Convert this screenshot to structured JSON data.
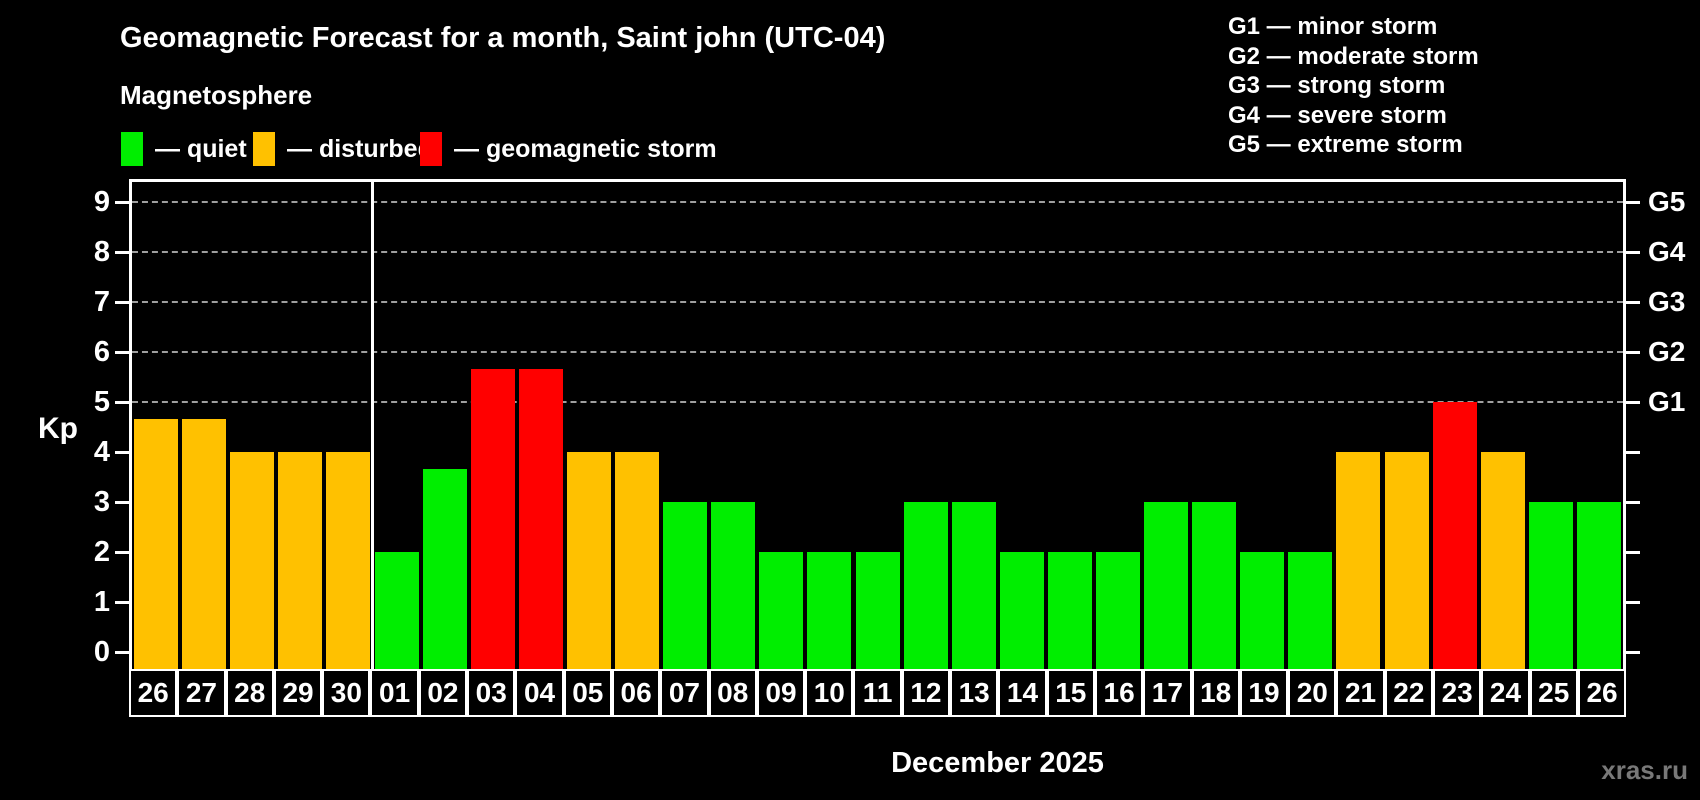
{
  "header": {
    "title": "Geomagnetic Forecast for a month, Saint john (UTC-04)",
    "subtitle": "Magnetosphere",
    "watermark": "xras.ru"
  },
  "magnetosphere_legend": {
    "items": [
      {
        "key": "quiet",
        "label": "— quiet"
      },
      {
        "key": "disturbed",
        "label": "— disturbed"
      },
      {
        "key": "storm",
        "label": "— geomagnetic storm"
      }
    ]
  },
  "storm_scale_legend": {
    "items": [
      "G1 — minor storm",
      "G2 — moderate storm",
      "G3 — strong storm",
      "G4 — severe storm",
      "G5 — extreme storm"
    ]
  },
  "chart_data": {
    "type": "bar",
    "title": "Geomagnetic Forecast for a month, Saint john (UTC-04)",
    "subtitle": "Magnetosphere",
    "xlabel": "December 2025",
    "ylabel": "Kp",
    "ylim": [
      0,
      9
    ],
    "y_ticks": [
      0,
      1,
      2,
      3,
      4,
      5,
      6,
      7,
      8,
      9
    ],
    "gridlines_at_kp": [
      5,
      6,
      7,
      8,
      9
    ],
    "grid": "dashed-horizontal",
    "legend_position": "top",
    "right_axis_labels": [
      {
        "label": "G1",
        "kp": 5
      },
      {
        "label": "G2",
        "kp": 6
      },
      {
        "label": "G3",
        "kp": 7
      },
      {
        "label": "G4",
        "kp": 8
      },
      {
        "label": "G5",
        "kp": 9
      }
    ],
    "month_boundary_index": 5,
    "categories": [
      "26",
      "27",
      "28",
      "29",
      "30",
      "01",
      "02",
      "03",
      "04",
      "05",
      "06",
      "07",
      "08",
      "09",
      "10",
      "11",
      "12",
      "13",
      "14",
      "15",
      "16",
      "17",
      "18",
      "19",
      "20",
      "21",
      "22",
      "23",
      "24",
      "25",
      "26"
    ],
    "values": [
      4.67,
      4.67,
      4,
      4,
      4,
      2,
      3.67,
      5.67,
      5.67,
      4,
      4,
      3,
      3,
      2,
      2,
      2,
      3,
      3,
      2,
      2,
      2,
      3,
      3,
      2,
      2,
      4,
      4,
      5,
      4,
      3,
      3
    ],
    "states": [
      "disturbed",
      "disturbed",
      "disturbed",
      "disturbed",
      "disturbed",
      "quiet",
      "quiet",
      "storm",
      "storm",
      "disturbed",
      "disturbed",
      "quiet",
      "quiet",
      "quiet",
      "quiet",
      "quiet",
      "quiet",
      "quiet",
      "quiet",
      "quiet",
      "quiet",
      "quiet",
      "quiet",
      "quiet",
      "quiet",
      "disturbed",
      "disturbed",
      "storm",
      "disturbed",
      "quiet",
      "quiet"
    ],
    "colors": {
      "quiet": "#00ee00",
      "disturbed": "#ffc100",
      "storm": "#ff0000",
      "gridline": "#9f9f9f",
      "axis": "#ffffff",
      "background": "#000000"
    }
  }
}
